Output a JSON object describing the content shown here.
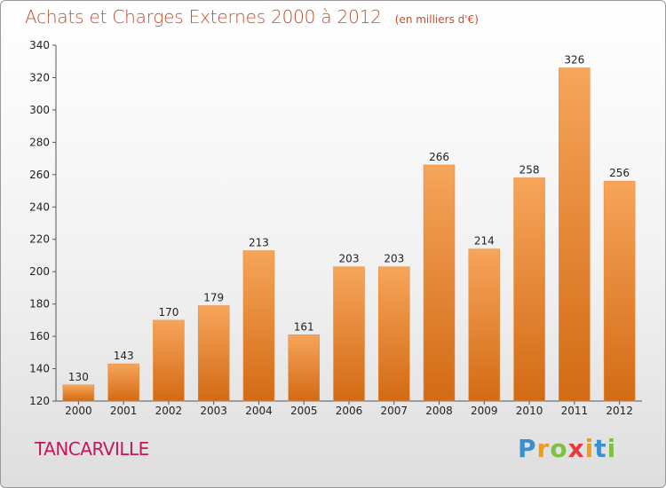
{
  "title": "Achats et Charges Externes 2000 à 2012",
  "unit": "(en milliers d'€)",
  "city": "TANCARVILLE",
  "brand": {
    "letters": [
      {
        "ch": "P",
        "color": "#3a8fd0"
      },
      {
        "ch": "r",
        "color": "#f29a1a"
      },
      {
        "ch": "o",
        "color": "#7cc242"
      },
      {
        "ch": "x",
        "color": "#e8393c"
      },
      {
        "ch": "i",
        "color": "#f29a1a"
      },
      {
        "ch": "t",
        "color": "#3a8fd0"
      },
      {
        "ch": "i",
        "color": "#7cc242"
      }
    ]
  },
  "colors": {
    "bar_light": "#f6a55a",
    "bar_dark": "#d36a14",
    "title": "#c24d2e"
  },
  "chart_data": {
    "type": "bar",
    "categories": [
      "2000",
      "2001",
      "2002",
      "2003",
      "2004",
      "2005",
      "2006",
      "2007",
      "2008",
      "2009",
      "2010",
      "2011",
      "2012"
    ],
    "values": [
      130,
      143,
      170,
      179,
      213,
      161,
      203,
      203,
      266,
      214,
      258,
      326,
      256
    ],
    "ylim": [
      120,
      340
    ],
    "yticks": [
      120,
      140,
      160,
      180,
      200,
      220,
      240,
      260,
      280,
      300,
      320,
      340
    ],
    "grid": false,
    "legend": "none"
  }
}
